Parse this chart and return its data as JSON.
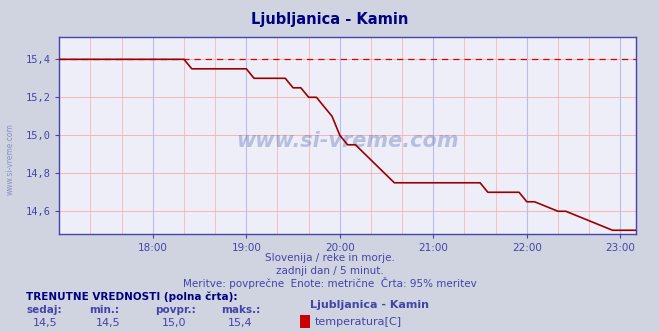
{
  "title": "Ljubljanica - Kamin",
  "subtitle1": "Slovenija / reke in morje.",
  "subtitle2": "zadnji dan / 5 minut.",
  "subtitle3": "Meritve: povprečne  Enote: metrične  Črta: 95% meritev",
  "watermark": "www.si-vreme.com",
  "bg_color": "#d0d4e0",
  "plot_bg_color": "#eeeef8",
  "title_color": "#000080",
  "axis_color": "#4444aa",
  "line_color": "#990000",
  "dashed_color": "#dd0000",
  "grid_color_h": "#ffaaaa",
  "grid_color_v": "#bbbbee",
  "ylim": [
    14.48,
    15.52
  ],
  "yticks": [
    14.6,
    14.8,
    15.0,
    15.2,
    15.4
  ],
  "xlim_hours": [
    17.0,
    23.167
  ],
  "xticks_hours": [
    18,
    19,
    20,
    21,
    22,
    23
  ],
  "max_value": 15.4,
  "footer_label": "TRENUTNE VREDNOSTI (polna črta):",
  "footer_cols": [
    "sedaj:",
    "min.:",
    "povpr.:",
    "maks.:"
  ],
  "footer_vals": [
    "14,5",
    "14,5",
    "15,0",
    "15,4"
  ],
  "legend_label": "Ljubljanica - Kamin",
  "legend_series": "temperatura[C]",
  "legend_color": "#cc0000",
  "time_points": [
    17.0,
    17.333,
    17.333,
    18.333,
    18.333,
    18.417,
    18.417,
    19.0,
    19.0,
    19.083,
    19.083,
    19.417,
    19.417,
    19.5,
    19.5,
    19.583,
    19.583,
    19.667,
    19.667,
    19.75,
    19.75,
    19.833,
    19.833,
    19.917,
    19.917,
    20.0,
    20.0,
    20.083,
    20.083,
    20.167,
    20.167,
    20.583,
    20.583,
    20.667,
    20.667,
    21.5,
    21.5,
    21.583,
    21.583,
    21.917,
    21.917,
    22.0,
    22.0,
    22.083,
    22.083,
    22.333,
    22.333,
    22.417,
    22.417,
    22.917,
    22.917,
    23.0,
    23.0,
    23.167
  ],
  "values_step": [
    15.4,
    15.4,
    15.4,
    15.4,
    15.4,
    15.35,
    15.35,
    15.35,
    15.35,
    15.3,
    15.3,
    15.3,
    15.3,
    15.25,
    15.25,
    15.25,
    15.25,
    15.2,
    15.2,
    15.2,
    15.2,
    15.15,
    15.15,
    15.1,
    15.1,
    15.0,
    15.0,
    14.95,
    14.95,
    14.95,
    14.95,
    14.75,
    14.75,
    14.75,
    14.75,
    14.75,
    14.75,
    14.7,
    14.7,
    14.7,
    14.7,
    14.65,
    14.65,
    14.65,
    14.65,
    14.6,
    14.6,
    14.6,
    14.6,
    14.5,
    14.5,
    14.5,
    14.5,
    14.5
  ]
}
